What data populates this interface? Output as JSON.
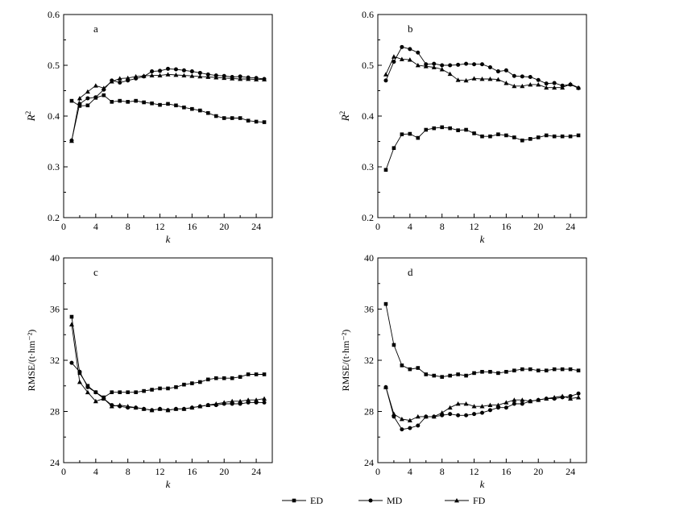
{
  "chart_data": [
    {
      "type": "line",
      "panel_label": "a",
      "xlabel": "k",
      "ylabel": "R",
      "ylabel_sup": "2",
      "xlim": [
        0,
        26
      ],
      "ylim": [
        0.2,
        0.6
      ],
      "xticks": [
        0,
        4,
        8,
        12,
        16,
        20,
        24
      ],
      "yticks": [
        0.2,
        0.3,
        0.4,
        0.5,
        0.6
      ],
      "ytick_labels": [
        "0.2",
        "0.3",
        "0.4",
        "0.5",
        "0.6"
      ],
      "x": [
        1,
        2,
        3,
        4,
        5,
        6,
        7,
        8,
        9,
        10,
        11,
        12,
        13,
        14,
        15,
        16,
        17,
        18,
        19,
        20,
        21,
        22,
        23,
        24,
        25
      ],
      "series": [
        {
          "name": "ED",
          "marker": "square",
          "values": [
            0.43,
            0.42,
            0.421,
            0.436,
            0.441,
            0.428,
            0.43,
            0.428,
            0.43,
            0.427,
            0.425,
            0.422,
            0.424,
            0.421,
            0.417,
            0.414,
            0.411,
            0.406,
            0.4,
            0.396,
            0.396,
            0.396,
            0.391,
            0.389,
            0.388
          ]
        },
        {
          "name": "MD",
          "marker": "circle",
          "values": [
            0.352,
            0.424,
            0.435,
            0.437,
            0.452,
            0.47,
            0.466,
            0.47,
            0.474,
            0.478,
            0.488,
            0.489,
            0.493,
            0.492,
            0.49,
            0.488,
            0.485,
            0.482,
            0.48,
            0.479,
            0.477,
            0.478,
            0.476,
            0.475,
            0.473
          ]
        },
        {
          "name": "FD",
          "marker": "triangle",
          "values": [
            0.351,
            0.435,
            0.448,
            0.46,
            0.455,
            0.468,
            0.474,
            0.475,
            0.478,
            0.479,
            0.48,
            0.48,
            0.482,
            0.481,
            0.48,
            0.479,
            0.478,
            0.477,
            0.476,
            0.475,
            0.474,
            0.473,
            0.473,
            0.472,
            0.472
          ]
        }
      ]
    },
    {
      "type": "line",
      "panel_label": "b",
      "xlabel": "k",
      "ylabel": "R",
      "ylabel_sup": "2",
      "xlim": [
        0,
        26
      ],
      "ylim": [
        0.2,
        0.6
      ],
      "xticks": [
        0,
        4,
        8,
        12,
        16,
        20,
        24
      ],
      "yticks": [
        0.2,
        0.3,
        0.4,
        0.5,
        0.6
      ],
      "ytick_labels": [
        "0.2",
        "0.3",
        "0.4",
        "0.5",
        "0.6"
      ],
      "x": [
        1,
        2,
        3,
        4,
        5,
        6,
        7,
        8,
        9,
        10,
        11,
        12,
        13,
        14,
        15,
        16,
        17,
        18,
        19,
        20,
        21,
        22,
        23,
        24,
        25
      ],
      "series": [
        {
          "name": "ED",
          "marker": "square",
          "values": [
            0.294,
            0.337,
            0.364,
            0.365,
            0.357,
            0.373,
            0.376,
            0.378,
            0.376,
            0.372,
            0.373,
            0.366,
            0.36,
            0.36,
            0.364,
            0.362,
            0.358,
            0.352,
            0.355,
            0.358,
            0.362,
            0.36,
            0.36,
            0.36,
            0.362
          ]
        },
        {
          "name": "MD",
          "marker": "circle",
          "values": [
            0.47,
            0.507,
            0.536,
            0.532,
            0.525,
            0.502,
            0.503,
            0.5,
            0.5,
            0.501,
            0.503,
            0.502,
            0.502,
            0.496,
            0.488,
            0.49,
            0.479,
            0.478,
            0.477,
            0.471,
            0.464,
            0.465,
            0.46,
            0.462,
            0.455
          ]
        },
        {
          "name": "FD",
          "marker": "triangle",
          "values": [
            0.482,
            0.517,
            0.512,
            0.511,
            0.5,
            0.498,
            0.496,
            0.492,
            0.483,
            0.471,
            0.47,
            0.474,
            0.473,
            0.473,
            0.472,
            0.465,
            0.459,
            0.459,
            0.462,
            0.462,
            0.456,
            0.456,
            0.456,
            0.463,
            0.456
          ]
        }
      ]
    },
    {
      "type": "line",
      "panel_label": "c",
      "xlabel": "k",
      "ylabel": "RMSE/(t·hm⁻²)",
      "xlim": [
        0,
        26
      ],
      "ylim": [
        24,
        40
      ],
      "xticks": [
        0,
        4,
        8,
        12,
        16,
        20,
        24
      ],
      "yticks": [
        24,
        28,
        32,
        36,
        40
      ],
      "ytick_labels": [
        "24",
        "28",
        "32",
        "36",
        "40"
      ],
      "x": [
        1,
        2,
        3,
        4,
        5,
        6,
        7,
        8,
        9,
        10,
        11,
        12,
        13,
        14,
        15,
        16,
        17,
        18,
        19,
        20,
        21,
        22,
        23,
        24,
        25
      ],
      "series": [
        {
          "name": "ED",
          "marker": "square",
          "values": [
            35.4,
            31.0,
            30.0,
            29.5,
            29.1,
            29.5,
            29.5,
            29.5,
            29.5,
            29.6,
            29.7,
            29.8,
            29.8,
            29.9,
            30.1,
            30.2,
            30.3,
            30.5,
            30.6,
            30.6,
            30.6,
            30.7,
            30.9,
            30.9,
            30.9
          ]
        },
        {
          "name": "MD",
          "marker": "circle",
          "values": [
            31.8,
            31.1,
            29.9,
            29.5,
            29.0,
            28.5,
            28.4,
            28.3,
            28.3,
            28.2,
            28.1,
            28.2,
            28.1,
            28.2,
            28.2,
            28.3,
            28.4,
            28.5,
            28.5,
            28.6,
            28.6,
            28.6,
            28.7,
            28.7,
            28.7
          ]
        },
        {
          "name": "FD",
          "marker": "triangle",
          "values": [
            34.8,
            30.3,
            29.5,
            28.8,
            29.0,
            28.4,
            28.5,
            28.4,
            28.3,
            28.2,
            28.1,
            28.2,
            28.1,
            28.2,
            28.2,
            28.3,
            28.4,
            28.5,
            28.6,
            28.7,
            28.8,
            28.8,
            28.9,
            28.9,
            29.0
          ]
        }
      ]
    },
    {
      "type": "line",
      "panel_label": "d",
      "xlabel": "k",
      "ylabel": "RMSE/(t·hm⁻²)",
      "xlim": [
        0,
        26
      ],
      "ylim": [
        24,
        40
      ],
      "xticks": [
        0,
        4,
        8,
        12,
        16,
        20,
        24
      ],
      "yticks": [
        24,
        28,
        32,
        36,
        40
      ],
      "ytick_labels": [
        "24",
        "28",
        "32",
        "36",
        "40"
      ],
      "x": [
        1,
        2,
        3,
        4,
        5,
        6,
        7,
        8,
        9,
        10,
        11,
        12,
        13,
        14,
        15,
        16,
        17,
        18,
        19,
        20,
        21,
        22,
        23,
        24,
        25
      ],
      "series": [
        {
          "name": "ED",
          "marker": "square",
          "values": [
            36.4,
            33.2,
            31.6,
            31.3,
            31.4,
            30.9,
            30.8,
            30.7,
            30.8,
            30.9,
            30.8,
            31.0,
            31.1,
            31.1,
            31.0,
            31.1,
            31.2,
            31.3,
            31.3,
            31.2,
            31.2,
            31.3,
            31.3,
            31.3,
            31.2
          ]
        },
        {
          "name": "MD",
          "marker": "circle",
          "values": [
            29.9,
            27.6,
            26.6,
            26.7,
            26.9,
            27.6,
            27.6,
            27.7,
            27.8,
            27.7,
            27.7,
            27.8,
            27.9,
            28.1,
            28.3,
            28.3,
            28.6,
            28.6,
            28.8,
            28.9,
            29.0,
            29.0,
            29.1,
            29.2,
            29.4
          ]
        },
        {
          "name": "FD",
          "marker": "triangle",
          "values": [
            29.9,
            27.8,
            27.4,
            27.3,
            27.6,
            27.6,
            27.6,
            27.9,
            28.3,
            28.6,
            28.6,
            28.4,
            28.4,
            28.5,
            28.5,
            28.7,
            28.9,
            28.9,
            28.8,
            28.9,
            29.0,
            29.1,
            29.2,
            29.0,
            29.1
          ]
        }
      ]
    }
  ],
  "legend": {
    "placement": "bottom-center",
    "entries": [
      {
        "label": "ED",
        "marker": "square"
      },
      {
        "label": "MD",
        "marker": "circle"
      },
      {
        "label": "FD",
        "marker": "triangle"
      }
    ]
  },
  "colors": {
    "line": "#000000",
    "axis": "#000000",
    "background": "#ffffff"
  }
}
